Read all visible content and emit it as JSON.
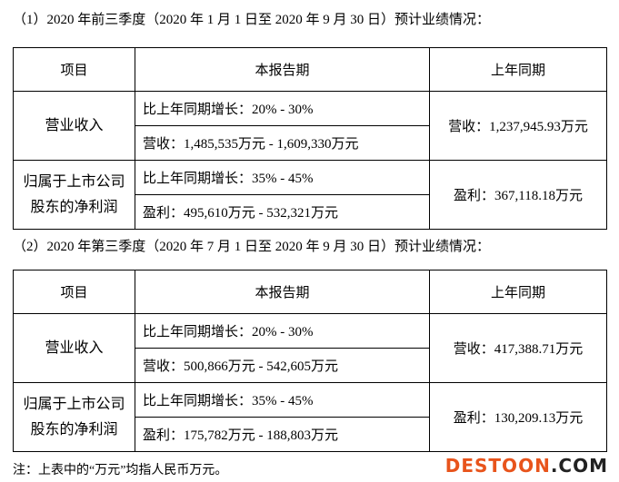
{
  "heading_1": "（1）2020 年前三季度（2020 年 1 月 1 日至 2020 年 9 月 30 日）预计业绩情况：",
  "table_1": {
    "header": [
      "项目",
      "本报告期",
      "上年同期"
    ],
    "groups": [
      {
        "item": "营业收入",
        "current": [
          "比上年同期增长：20% - 30%",
          "营收：1,485,535万元 - 1,609,330万元"
        ],
        "previous": "营收：1,237,945.93万元"
      },
      {
        "item": "归属于上市公司股东的净利润",
        "current": [
          "比上年同期增长：35% - 45%",
          "盈利：495,610万元 - 532,321万元"
        ],
        "previous": "盈利：367,118.18万元"
      }
    ]
  },
  "heading_2": "（2）2020 年第三季度（2020 年 7 月 1 日至 2020 年 9 月 30 日）预计业绩情况：",
  "table_2": {
    "header": [
      "项目",
      "本报告期",
      "上年同期"
    ],
    "groups": [
      {
        "item": "营业收入",
        "current": [
          "比上年同期增长：20% - 30%",
          "营收：500,866万元 - 542,605万元"
        ],
        "previous": "营收：417,388.71万元"
      },
      {
        "item": "归属于上市公司股东的净利润",
        "current": [
          "比上年同期增长：35% - 45%",
          "盈利：175,782万元 - 188,803万元"
        ],
        "previous": "盈利：130,209.13万元"
      }
    ]
  },
  "note": "注：上表中的“万元”均指人民币万元。",
  "watermark": {
    "brand": "DESTOON",
    "suffix": ".COM"
  }
}
